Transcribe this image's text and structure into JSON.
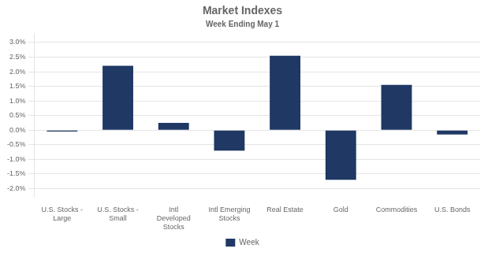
{
  "chart_data": {
    "type": "bar",
    "title": "Market Indexes",
    "subtitle": "Week Ending May 1",
    "categories": [
      "U.S. Stocks -\nLarge",
      "U.S. Stocks -\nSmall",
      "Intl\nDeveloped\nStocks",
      "Intl Emerging\nStocks",
      "Real Estate",
      "Gold",
      "Commodities",
      "U.S. Bonds"
    ],
    "series": [
      {
        "name": "Week",
        "color": "#1F3864",
        "values": [
          -0.0005,
          0.022,
          0.0025,
          -0.007,
          0.0255,
          -0.017,
          0.0155,
          -0.0015
        ]
      }
    ],
    "ylim": [
      -0.023,
      0.033
    ],
    "yticks": [
      {
        "value": -0.02,
        "label": "-2.0%"
      },
      {
        "value": -0.015,
        "label": "-1.5%"
      },
      {
        "value": -0.01,
        "label": "-1.0%"
      },
      {
        "value": -0.005,
        "label": "-0.5%"
      },
      {
        "value": 0.0,
        "label": "0.0%"
      },
      {
        "value": 0.005,
        "label": "0.5%"
      },
      {
        "value": 0.01,
        "label": "1.0%"
      },
      {
        "value": 0.015,
        "label": "1.5%"
      },
      {
        "value": 0.02,
        "label": "2.0%"
      },
      {
        "value": 0.025,
        "label": "2.5%"
      },
      {
        "value": 0.03,
        "label": "3.0%"
      }
    ],
    "grid": true,
    "legend": "bottom"
  }
}
